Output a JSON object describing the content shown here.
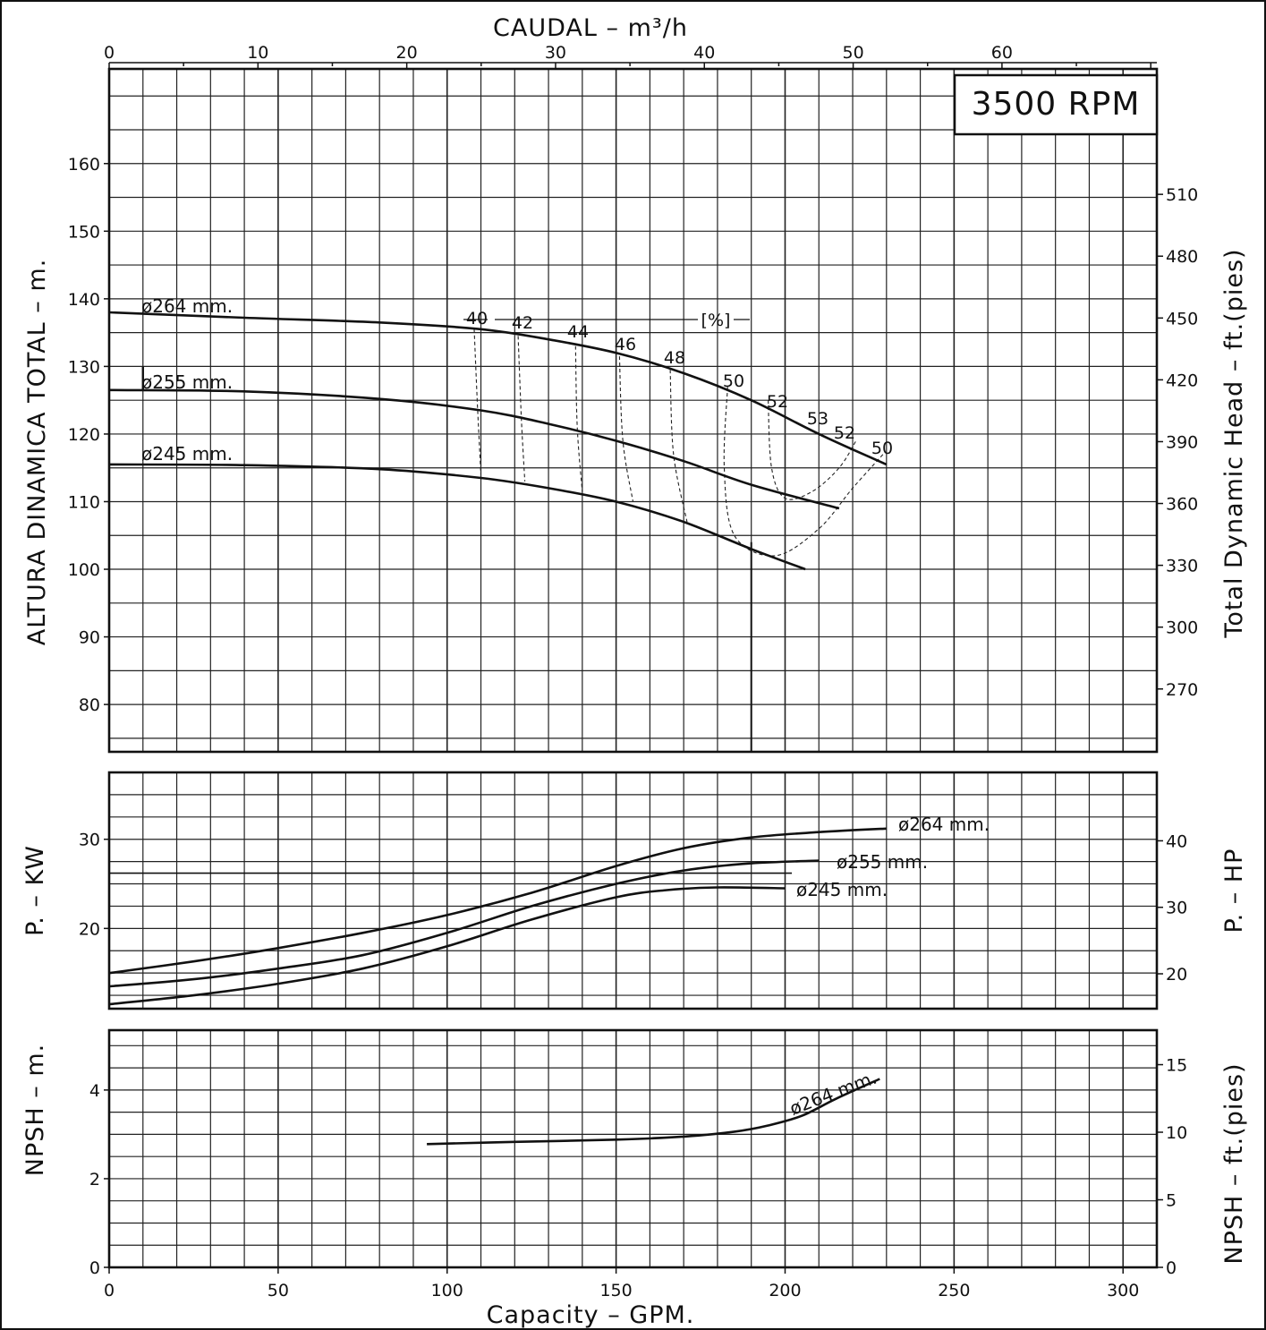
{
  "chart_data": [
    {
      "type": "line",
      "panel": "head",
      "rpm_label": "3500 RPM",
      "xlabel_top": "CAUDAL  –  m³/h",
      "ylabel_left": "ALTURA DINAMICA TOTAL – m.",
      "ylabel_right": "Total Dynamic Head – ft.(pies)",
      "x_unit": "GPM",
      "xlim": [
        0,
        310
      ],
      "ylim": [
        73,
        174
      ],
      "x_top_ticks": [
        "0",
        "10",
        "20",
        "30",
        "40",
        "50",
        "60"
      ],
      "y_left_ticks": [
        "80",
        "90",
        "100",
        "110",
        "120",
        "130",
        "140",
        "150",
        "160"
      ],
      "y_right_ticks": [
        "270",
        "300",
        "330",
        "360",
        "390",
        "420",
        "450",
        "480",
        "510"
      ],
      "grid": true,
      "series": [
        {
          "name": "ø264 mm.",
          "x": [
            0,
            40,
            80,
            110,
            130,
            150,
            170,
            190,
            210,
            230
          ],
          "y": [
            138,
            137.2,
            136.5,
            135.5,
            134,
            132,
            129,
            125,
            120,
            115.5
          ]
        },
        {
          "name": "ø255 mm.",
          "x": [
            0,
            40,
            80,
            110,
            130,
            150,
            170,
            190,
            216
          ],
          "y": [
            126.5,
            126.3,
            125.2,
            123.5,
            121.5,
            119,
            116,
            112.5,
            109
          ]
        },
        {
          "name": "ø245 mm.",
          "x": [
            0,
            40,
            80,
            110,
            130,
            150,
            170,
            190,
            206
          ],
          "y": [
            115.5,
            115.4,
            114.8,
            113.5,
            112,
            110,
            107,
            103,
            100
          ]
        }
      ],
      "efficiency_unit": "[%]",
      "efficiency_contours": [
        {
          "label": "40",
          "x": [
            108,
            109,
            110
          ],
          "y": [
            135.5,
            124,
            114
          ]
        },
        {
          "label": "42",
          "x": [
            121,
            122,
            123
          ],
          "y": [
            134.5,
            122,
            113
          ]
        },
        {
          "label": "44",
          "x": [
            138,
            138.5,
            140
          ],
          "y": [
            133,
            121,
            111.5
          ]
        },
        {
          "label": "46",
          "x": [
            151,
            152,
            155
          ],
          "y": [
            131.5,
            119,
            110
          ]
        },
        {
          "label": "48",
          "x": [
            166,
            167,
            171
          ],
          "y": [
            129.5,
            117,
            107
          ]
        },
        {
          "label": "50",
          "x": [
            183,
            182,
            185,
            197,
            210,
            220,
            229
          ],
          "y": [
            127,
            115,
            105,
            102,
            106,
            112,
            117
          ]
        },
        {
          "label": "52",
          "x": [
            195,
            196,
            200,
            208,
            216,
            221
          ],
          "y": [
            125,
            115,
            110.5,
            111.5,
            115,
            119
          ]
        },
        {
          "label": "53",
          "x": [
            211
          ],
          "y": [
            121
          ]
        },
        {
          "label": "52",
          "x": [
            218
          ],
          "y": [
            119
          ]
        },
        {
          "label": "50",
          "x": [
            229
          ],
          "y": [
            117
          ]
        }
      ]
    },
    {
      "type": "line",
      "panel": "power",
      "ylabel_left": "P. – KW",
      "ylabel_right": "P. – HP",
      "xlim": [
        0,
        310
      ],
      "ylim": [
        11,
        37.5
      ],
      "y_left_ticks": [
        "20",
        "30"
      ],
      "y_right_ticks": [
        "20",
        "30",
        "40"
      ],
      "grid": true,
      "series": [
        {
          "name": "ø264 mm.",
          "x": [
            0,
            25,
            50,
            75,
            100,
            125,
            150,
            170,
            190,
            210,
            230
          ],
          "y": [
            15,
            16.3,
            17.8,
            19.5,
            21.5,
            24,
            27,
            29,
            30.2,
            30.8,
            31.2
          ]
        },
        {
          "name": "ø255 mm.",
          "x": [
            0,
            25,
            50,
            75,
            100,
            125,
            150,
            170,
            190,
            210
          ],
          "y": [
            13.5,
            14.3,
            15.5,
            17,
            19.5,
            22.5,
            25,
            26.5,
            27.3,
            27.6
          ]
        },
        {
          "name": "ø245 mm.",
          "x": [
            0,
            25,
            50,
            75,
            100,
            125,
            150,
            165,
            180,
            200
          ],
          "y": [
            11.5,
            12.5,
            13.8,
            15.5,
            18,
            21,
            23.5,
            24.3,
            24.6,
            24.5
          ]
        }
      ]
    },
    {
      "type": "line",
      "panel": "npsh",
      "ylabel_left": "NPSH – m.",
      "ylabel_right": "NPSH – ft.(pies)",
      "xlabel": "Capacity – GPM.",
      "xlim": [
        0,
        310
      ],
      "ylim": [
        0,
        5.35
      ],
      "x_ticks": [
        "0",
        "50",
        "100",
        "150",
        "200",
        "250",
        "300"
      ],
      "y_left_ticks": [
        "0",
        "2",
        "4"
      ],
      "y_right_ticks": [
        "0",
        "5",
        "10",
        "15"
      ],
      "grid": true,
      "series": [
        {
          "name": "ø264 mm.",
          "x": [
            94,
            120,
            150,
            170,
            185,
            195,
            205,
            215,
            228
          ],
          "y": [
            2.78,
            2.83,
            2.88,
            2.95,
            3.06,
            3.2,
            3.42,
            3.8,
            4.25
          ]
        }
      ]
    }
  ]
}
